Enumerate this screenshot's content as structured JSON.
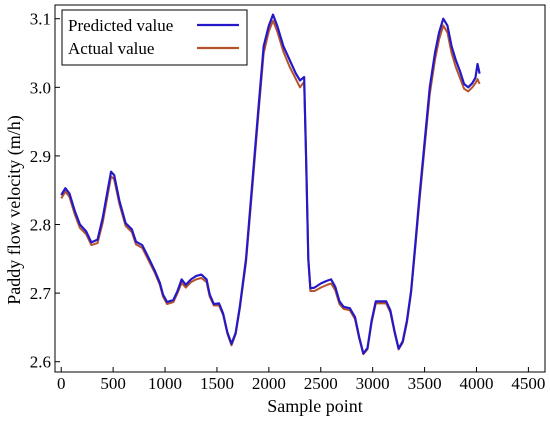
{
  "chart_data": {
    "type": "line",
    "title": "",
    "xlabel": "Sample point",
    "ylabel": "Paddy flow velocity (m/h)",
    "xlim": [
      -60,
      4660
    ],
    "ylim": [
      2.585,
      3.12
    ],
    "xticks": [
      0,
      500,
      1000,
      1500,
      2000,
      2500,
      3000,
      3500,
      4000,
      4500
    ],
    "yticks": [
      2.6,
      2.7,
      2.8,
      2.9,
      3.0,
      3.1
    ],
    "ytick_labels": [
      "2.6",
      "2.7",
      "2.8",
      "2.9",
      "3.0",
      "3.1"
    ],
    "grid": false,
    "legend_position": "top-left",
    "series": [
      {
        "name": "Predicted value",
        "color": "#2419c8",
        "points": [
          [
            0,
            2.843
          ],
          [
            40,
            2.853
          ],
          [
            80,
            2.845
          ],
          [
            130,
            2.82
          ],
          [
            180,
            2.8
          ],
          [
            240,
            2.79
          ],
          [
            290,
            2.774
          ],
          [
            350,
            2.778
          ],
          [
            400,
            2.81
          ],
          [
            450,
            2.852
          ],
          [
            480,
            2.877
          ],
          [
            510,
            2.872
          ],
          [
            560,
            2.835
          ],
          [
            620,
            2.802
          ],
          [
            680,
            2.793
          ],
          [
            720,
            2.775
          ],
          [
            780,
            2.77
          ],
          [
            840,
            2.752
          ],
          [
            900,
            2.733
          ],
          [
            950,
            2.715
          ],
          [
            980,
            2.698
          ],
          [
            1020,
            2.687
          ],
          [
            1080,
            2.69
          ],
          [
            1120,
            2.703
          ],
          [
            1160,
            2.72
          ],
          [
            1200,
            2.712
          ],
          [
            1250,
            2.72
          ],
          [
            1300,
            2.725
          ],
          [
            1350,
            2.727
          ],
          [
            1400,
            2.72
          ],
          [
            1430,
            2.698
          ],
          [
            1470,
            2.684
          ],
          [
            1520,
            2.685
          ],
          [
            1560,
            2.67
          ],
          [
            1600,
            2.643
          ],
          [
            1640,
            2.626
          ],
          [
            1680,
            2.642
          ],
          [
            1720,
            2.68
          ],
          [
            1780,
            2.75
          ],
          [
            1840,
            2.86
          ],
          [
            1900,
            2.97
          ],
          [
            1950,
            3.06
          ],
          [
            2000,
            3.09
          ],
          [
            2040,
            3.106
          ],
          [
            2080,
            3.09
          ],
          [
            2140,
            3.06
          ],
          [
            2200,
            3.04
          ],
          [
            2260,
            3.02
          ],
          [
            2300,
            3.01
          ],
          [
            2340,
            3.015
          ],
          [
            2360,
            2.89
          ],
          [
            2380,
            2.75
          ],
          [
            2400,
            2.707
          ],
          [
            2440,
            2.708
          ],
          [
            2500,
            2.714
          ],
          [
            2560,
            2.718
          ],
          [
            2600,
            2.72
          ],
          [
            2640,
            2.709
          ],
          [
            2680,
            2.688
          ],
          [
            2720,
            2.68
          ],
          [
            2780,
            2.678
          ],
          [
            2830,
            2.665
          ],
          [
            2870,
            2.636
          ],
          [
            2910,
            2.612
          ],
          [
            2950,
            2.62
          ],
          [
            2990,
            2.66
          ],
          [
            3030,
            2.688
          ],
          [
            3080,
            2.688
          ],
          [
            3130,
            2.688
          ],
          [
            3170,
            2.675
          ],
          [
            3210,
            2.645
          ],
          [
            3250,
            2.619
          ],
          [
            3290,
            2.63
          ],
          [
            3330,
            2.66
          ],
          [
            3370,
            2.703
          ],
          [
            3410,
            2.77
          ],
          [
            3450,
            2.84
          ],
          [
            3500,
            2.92
          ],
          [
            3550,
            3.0
          ],
          [
            3600,
            3.05
          ],
          [
            3640,
            3.08
          ],
          [
            3680,
            3.1
          ],
          [
            3720,
            3.09
          ],
          [
            3760,
            3.06
          ],
          [
            3800,
            3.04
          ],
          [
            3840,
            3.024
          ],
          [
            3880,
            3.005
          ],
          [
            3920,
            3.0
          ],
          [
            3960,
            3.006
          ],
          [
            3990,
            3.014
          ],
          [
            4010,
            3.034
          ],
          [
            4030,
            3.02
          ]
        ]
      },
      {
        "name": "Actual value",
        "color": "#b5542a",
        "points": [
          [
            0,
            2.838
          ],
          [
            40,
            2.848
          ],
          [
            80,
            2.84
          ],
          [
            130,
            2.815
          ],
          [
            180,
            2.795
          ],
          [
            240,
            2.786
          ],
          [
            290,
            2.77
          ],
          [
            350,
            2.773
          ],
          [
            400,
            2.803
          ],
          [
            450,
            2.845
          ],
          [
            480,
            2.87
          ],
          [
            510,
            2.866
          ],
          [
            560,
            2.83
          ],
          [
            620,
            2.798
          ],
          [
            680,
            2.789
          ],
          [
            720,
            2.771
          ],
          [
            780,
            2.766
          ],
          [
            840,
            2.748
          ],
          [
            900,
            2.73
          ],
          [
            950,
            2.712
          ],
          [
            980,
            2.695
          ],
          [
            1020,
            2.684
          ],
          [
            1080,
            2.687
          ],
          [
            1120,
            2.7
          ],
          [
            1160,
            2.715
          ],
          [
            1200,
            2.708
          ],
          [
            1250,
            2.716
          ],
          [
            1300,
            2.72
          ],
          [
            1350,
            2.722
          ],
          [
            1400,
            2.716
          ],
          [
            1430,
            2.695
          ],
          [
            1470,
            2.682
          ],
          [
            1520,
            2.682
          ],
          [
            1560,
            2.668
          ],
          [
            1600,
            2.641
          ],
          [
            1640,
            2.624
          ],
          [
            1680,
            2.64
          ],
          [
            1720,
            2.677
          ],
          [
            1780,
            2.745
          ],
          [
            1840,
            2.852
          ],
          [
            1900,
            2.962
          ],
          [
            1950,
            3.05
          ],
          [
            2000,
            3.082
          ],
          [
            2040,
            3.097
          ],
          [
            2080,
            3.082
          ],
          [
            2140,
            3.052
          ],
          [
            2200,
            3.03
          ],
          [
            2260,
            3.012
          ],
          [
            2300,
            3.0
          ],
          [
            2340,
            3.008
          ],
          [
            2360,
            2.885
          ],
          [
            2380,
            2.748
          ],
          [
            2400,
            2.703
          ],
          [
            2440,
            2.703
          ],
          [
            2500,
            2.708
          ],
          [
            2560,
            2.712
          ],
          [
            2600,
            2.714
          ],
          [
            2640,
            2.704
          ],
          [
            2680,
            2.684
          ],
          [
            2720,
            2.677
          ],
          [
            2780,
            2.675
          ],
          [
            2830,
            2.662
          ],
          [
            2870,
            2.634
          ],
          [
            2910,
            2.611
          ],
          [
            2950,
            2.618
          ],
          [
            2990,
            2.657
          ],
          [
            3030,
            2.685
          ],
          [
            3080,
            2.685
          ],
          [
            3130,
            2.685
          ],
          [
            3170,
            2.672
          ],
          [
            3210,
            2.643
          ],
          [
            3250,
            2.618
          ],
          [
            3290,
            2.628
          ],
          [
            3330,
            2.657
          ],
          [
            3370,
            2.7
          ],
          [
            3410,
            2.765
          ],
          [
            3450,
            2.833
          ],
          [
            3500,
            2.912
          ],
          [
            3550,
            2.99
          ],
          [
            3600,
            3.04
          ],
          [
            3640,
            3.07
          ],
          [
            3680,
            3.09
          ],
          [
            3720,
            3.08
          ],
          [
            3760,
            3.05
          ],
          [
            3800,
            3.03
          ],
          [
            3840,
            3.014
          ],
          [
            3880,
            2.998
          ],
          [
            3920,
            2.994
          ],
          [
            3960,
            3.0
          ],
          [
            3990,
            3.006
          ],
          [
            4010,
            3.012
          ],
          [
            4030,
            3.005
          ]
        ]
      }
    ]
  }
}
